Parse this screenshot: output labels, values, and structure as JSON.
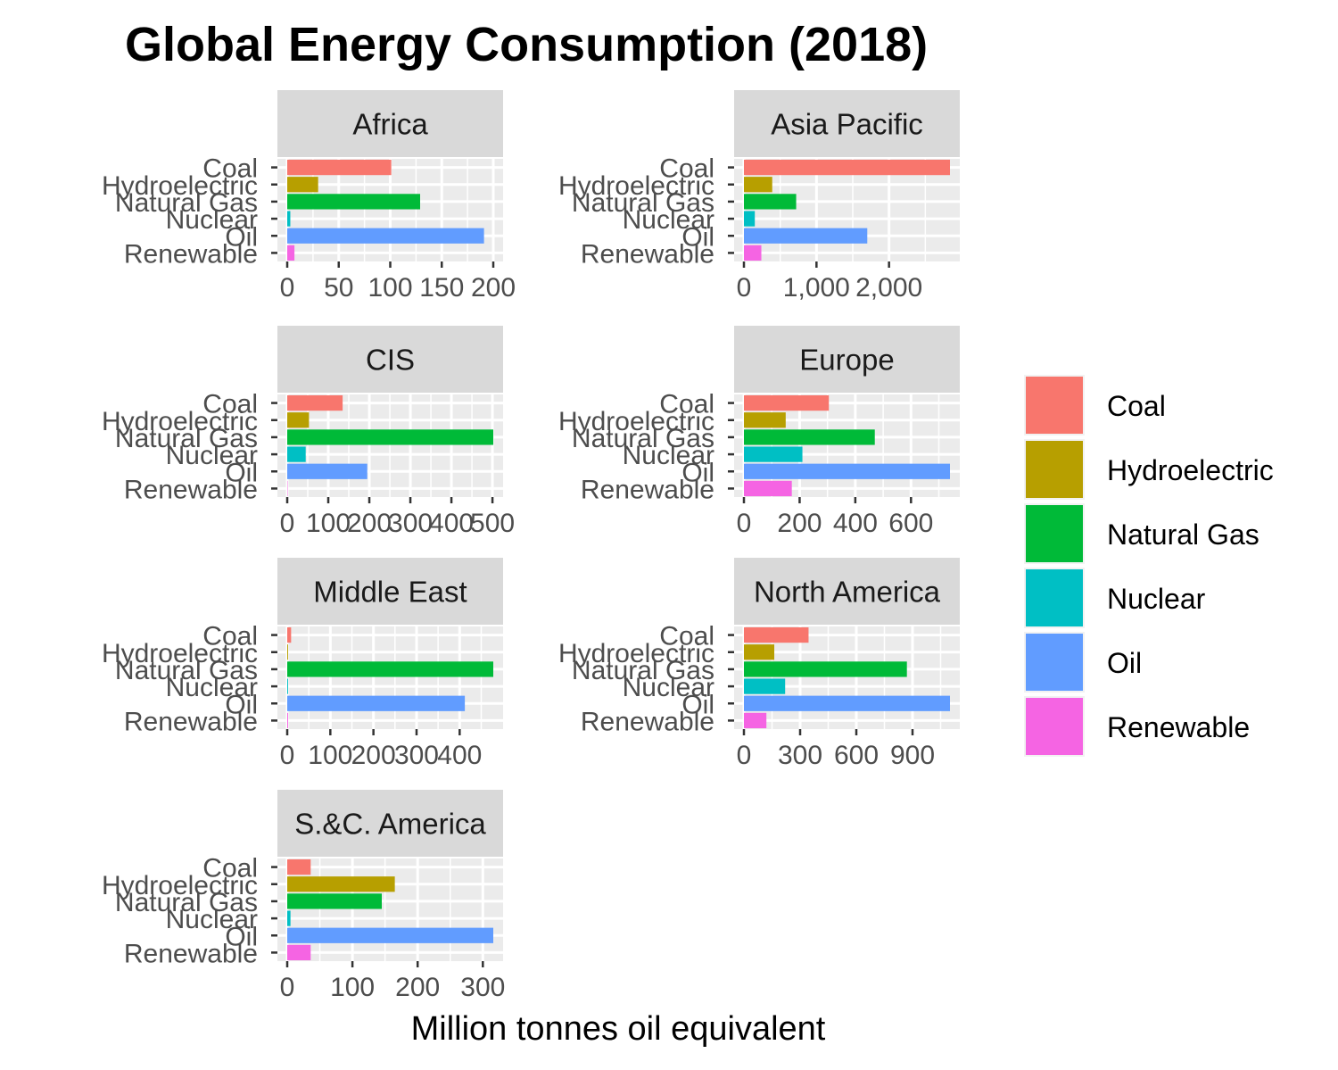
{
  "chart_data": {
    "type": "bar",
    "orientation": "horizontal",
    "title": "Global Energy Consumption (2018)",
    "xlabel": "Million tonnes oil equivalent",
    "ylabel": "",
    "categories": [
      "Coal",
      "Hydroelectric",
      "Natural Gas",
      "Nuclear",
      "Oil",
      "Renewable"
    ],
    "legend": {
      "position": "right",
      "entries": [
        {
          "label": "Coal",
          "color": "#F8766D"
        },
        {
          "label": "Hydroelectric",
          "color": "#B79F00"
        },
        {
          "label": "Natural Gas",
          "color": "#00BA38"
        },
        {
          "label": "Nuclear",
          "color": "#00BFC4"
        },
        {
          "label": "Oil",
          "color": "#619CFF"
        },
        {
          "label": "Renewable",
          "color": "#F564E3"
        }
      ]
    },
    "grid": true,
    "facets": [
      {
        "name": "Africa",
        "values": [
          101,
          30,
          129,
          3,
          191,
          7
        ],
        "xlim": [
          0,
          200
        ],
        "ticks": [
          0,
          50,
          100,
          150,
          200
        ],
        "tick_labels": [
          "0",
          "50",
          "100",
          "150",
          "200"
        ]
      },
      {
        "name": "Asia Pacific",
        "values": [
          2840,
          390,
          720,
          150,
          1700,
          240
        ],
        "xlim": [
          0,
          2840
        ],
        "ticks": [
          0,
          1000,
          2000
        ],
        "tick_labels": [
          "0",
          "1,000",
          "2,000"
        ]
      },
      {
        "name": "CIS",
        "values": [
          135,
          53,
          502,
          45,
          195,
          1
        ],
        "xlim": [
          0,
          502
        ],
        "ticks": [
          0,
          100,
          200,
          300,
          400,
          500
        ],
        "tick_labels": [
          "0",
          "100",
          "200",
          "300",
          "400",
          "500"
        ]
      },
      {
        "name": "Europe",
        "values": [
          305,
          150,
          470,
          210,
          740,
          172
        ],
        "xlim": [
          0,
          740
        ],
        "ticks": [
          0,
          200,
          400,
          600
        ],
        "tick_labels": [
          "0",
          "200",
          "400",
          "600"
        ]
      },
      {
        "name": "Middle East",
        "values": [
          9,
          2,
          478,
          2,
          412,
          2
        ],
        "xlim": [
          0,
          478
        ],
        "ticks": [
          0,
          100,
          200,
          300,
          400
        ],
        "tick_labels": [
          "0",
          "100",
          "200",
          "300",
          "400"
        ]
      },
      {
        "name": "North America",
        "values": [
          345,
          162,
          870,
          220,
          1100,
          120
        ],
        "xlim": [
          0,
          1100
        ],
        "ticks": [
          0,
          300,
          600,
          900
        ],
        "tick_labels": [
          "0",
          "300",
          "600",
          "900"
        ]
      },
      {
        "name": "S.&C. America",
        "values": [
          36,
          165,
          145,
          5,
          316,
          36
        ],
        "xlim": [
          0,
          316
        ],
        "ticks": [
          0,
          100,
          200,
          300
        ],
        "tick_labels": [
          "0",
          "100",
          "200",
          "300"
        ]
      }
    ]
  }
}
